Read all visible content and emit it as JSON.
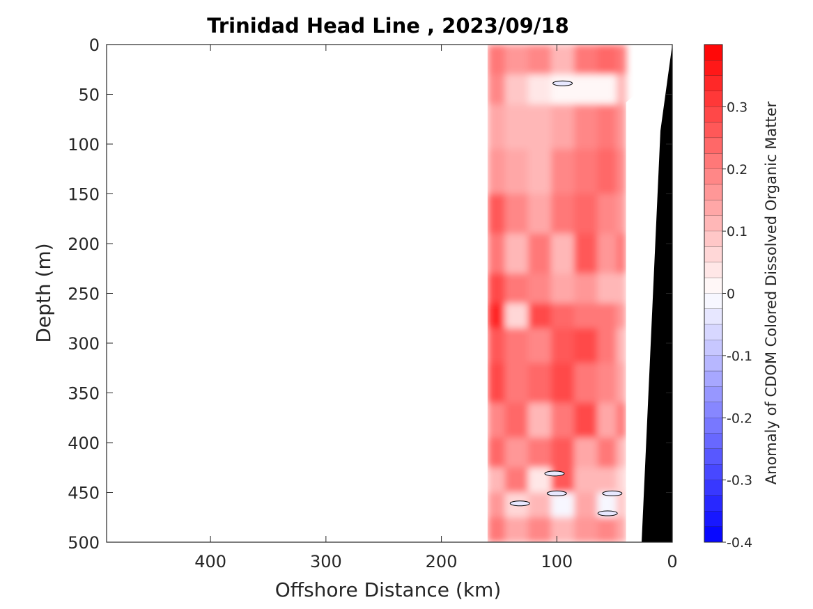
{
  "chart_data": {
    "type": "heatmap",
    "title": "Trinidad Head Line , 2023/09/18",
    "xlabel": "Offshore Distance (km)",
    "ylabel": "Depth (m)",
    "colorbar_label": "Anomaly of CDOM Colored Dissolved Organic Matter",
    "xlim": [
      490,
      0
    ],
    "ylim": [
      500,
      0
    ],
    "x_ticks": [
      400,
      300,
      200,
      100,
      0
    ],
    "x_tick_labels": [
      "400",
      "300",
      "200",
      "100",
      "0"
    ],
    "y_ticks": [
      0,
      50,
      100,
      150,
      200,
      250,
      300,
      350,
      400,
      450,
      500
    ],
    "y_tick_labels": [
      "0",
      "50",
      "100",
      "150",
      "200",
      "250",
      "300",
      "350",
      "400",
      "450",
      "500"
    ],
    "colorbar_range": [
      -0.4,
      0.4
    ],
    "colorbar_ticks": [
      0.3,
      0.2,
      0.1,
      0,
      -0.1,
      -0.2,
      -0.3,
      -0.4
    ],
    "colorbar_tick_labels": [
      "0.3",
      "0.2",
      "0.1",
      "0",
      "-0.1",
      "-0.2",
      "-0.3",
      "-0.4"
    ],
    "colorbar_levels": 32,
    "colormap": {
      "negative": "#0000ff",
      "zero": "#ffffff",
      "positive": "#ff0000"
    },
    "data_extent_km": [
      160,
      40
    ],
    "bathymetry_color": "#000000",
    "rows": [
      {
        "depth": 20,
        "values": [
          0.22,
          0.15,
          0.18,
          0.12,
          0.2,
          0.24,
          0.2
        ]
      },
      {
        "depth": 40,
        "values": [
          0.18,
          0.08,
          0.04,
          0.0,
          0.02,
          0.0,
          0.1
        ]
      },
      {
        "depth": 80,
        "values": [
          0.14,
          0.12,
          0.1,
          0.14,
          0.18,
          0.22,
          0.16
        ]
      },
      {
        "depth": 130,
        "values": [
          0.16,
          0.14,
          0.12,
          0.18,
          0.2,
          0.24,
          0.18
        ]
      },
      {
        "depth": 170,
        "values": [
          0.26,
          0.18,
          0.14,
          0.2,
          0.24,
          0.18,
          0.16
        ]
      },
      {
        "depth": 210,
        "values": [
          0.2,
          0.1,
          0.22,
          0.12,
          0.26,
          0.16,
          0.2
        ]
      },
      {
        "depth": 250,
        "values": [
          0.3,
          0.22,
          0.18,
          0.14,
          0.16,
          0.12,
          0.1
        ]
      },
      {
        "depth": 270,
        "values": [
          0.34,
          0.06,
          0.3,
          0.24,
          0.2,
          0.22,
          0.16
        ]
      },
      {
        "depth": 300,
        "values": [
          0.26,
          0.2,
          0.18,
          0.26,
          0.3,
          0.2,
          0.1
        ]
      },
      {
        "depth": 340,
        "values": [
          0.3,
          0.22,
          0.24,
          0.28,
          0.2,
          0.18,
          0.14
        ]
      },
      {
        "depth": 380,
        "values": [
          0.18,
          0.24,
          0.1,
          0.2,
          0.28,
          0.14,
          0.2
        ]
      },
      {
        "depth": 410,
        "values": [
          0.24,
          0.16,
          0.22,
          0.26,
          0.14,
          0.2,
          0.12
        ]
      },
      {
        "depth": 440,
        "values": [
          0.1,
          0.2,
          0.04,
          0.26,
          0.12,
          0.1,
          0.06
        ]
      },
      {
        "depth": 460,
        "values": [
          0.16,
          0.06,
          0.12,
          -0.02,
          0.14,
          -0.02,
          0.08
        ]
      },
      {
        "depth": 490,
        "values": [
          0.2,
          0.14,
          0.18,
          0.12,
          0.16,
          0.18,
          0.14
        ]
      }
    ],
    "row_distances_km": [
      155,
      135,
      115,
      95,
      75,
      55,
      42
    ],
    "zero_contours": [
      {
        "x": 95,
        "y": 39
      },
      {
        "x": 100,
        "y": 451
      },
      {
        "x": 52,
        "y": 451
      },
      {
        "x": 56,
        "y": 471
      },
      {
        "x": 102,
        "y": 431
      },
      {
        "x": 132,
        "y": 461
      }
    ]
  }
}
